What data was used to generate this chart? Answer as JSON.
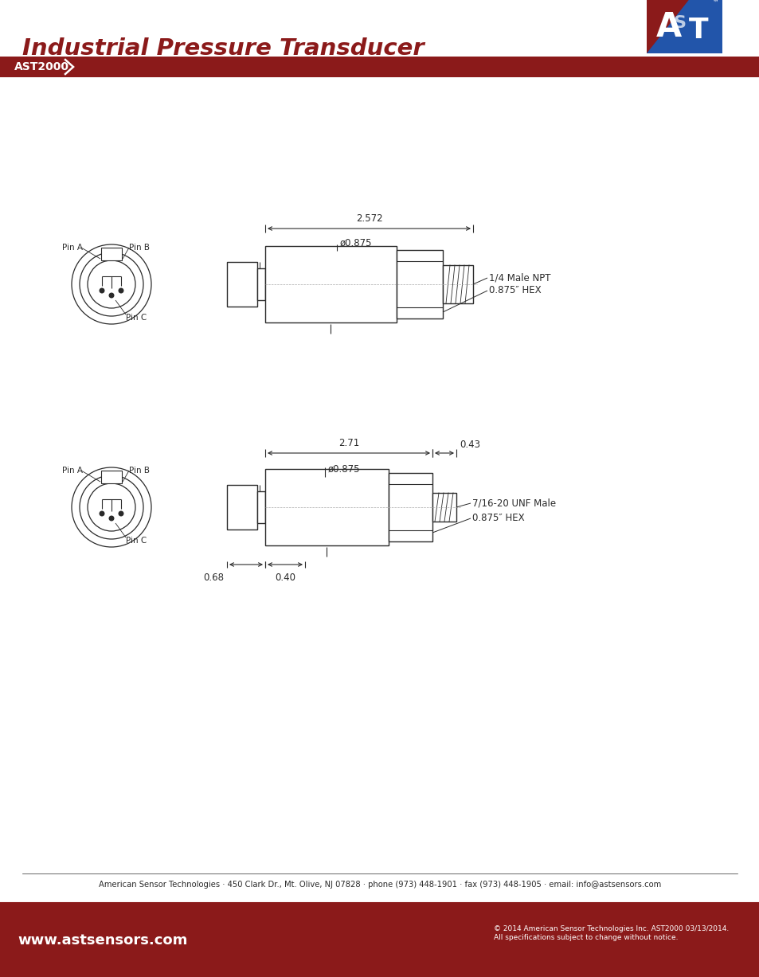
{
  "title": "Industrial Pressure Transducer",
  "subtitle": "AST2000",
  "bg_color": "#ffffff",
  "title_color": "#8B1A1A",
  "bar_color": "#8B1A1A",
  "line_color": "#2a2a2a",
  "footer_text": "American Sensor Technologies · 450 Clark Dr., Mt. Olive, NJ 07828 · phone (973) 448-1901 · fax (973) 448-1905 · email: info@astsensors.com",
  "footer_web": "www.astsensors.com",
  "footer_copy": "© 2014 American Sensor Technologies Inc. AST2000 03/13/2014.\nAll specifications subject to change without notice.",
  "diagram1": {
    "dim_total": "2.572",
    "dim_dia": "ø0.875",
    "label1": "1/4 Male NPT",
    "label2": "0.875″ HEX",
    "pin_a": "Pin A",
    "pin_b": "Pin B",
    "pin_c": "Pin C"
  },
  "diagram2": {
    "dim_total": "2.71",
    "dim_dia": "ø0.875",
    "dim_right": "0.43",
    "dim_left": "0.68",
    "dim_mid": "0.40",
    "label1": "7/16-20 UNF Male",
    "label2": "0.875″ HEX",
    "pin_a": "Pin A",
    "pin_b": "Pin B",
    "pin_c": "Pin C"
  }
}
